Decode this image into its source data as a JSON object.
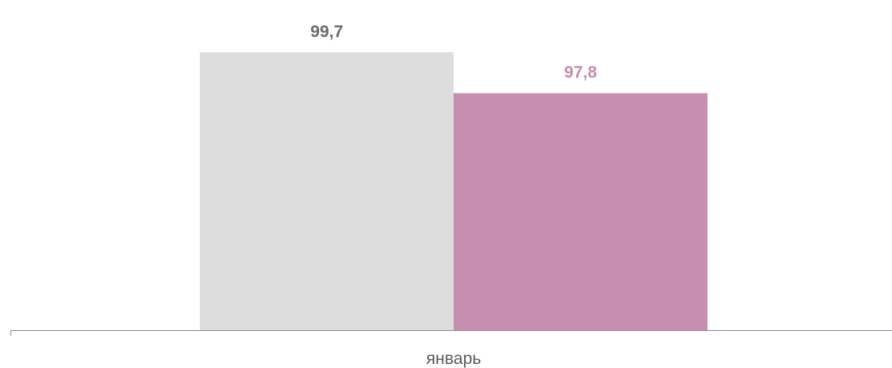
{
  "chart_data": {
    "type": "bar",
    "categories": [
      "январь"
    ],
    "series": [
      {
        "values": [
          99.7
        ],
        "color": "#dddddd",
        "label_color": "#6d6d6d"
      },
      {
        "values": [
          97.8
        ],
        "color": "#c68eaf",
        "label_color": "#c68eaf"
      }
    ],
    "data_labels": [
      "99,7",
      "97,8"
    ],
    "axis_color": "#8a8a8a",
    "ylim": [
      86.8,
      101.6
    ],
    "grid": false,
    "legend": "none",
    "title": "",
    "xlabel": "",
    "ylabel": ""
  }
}
